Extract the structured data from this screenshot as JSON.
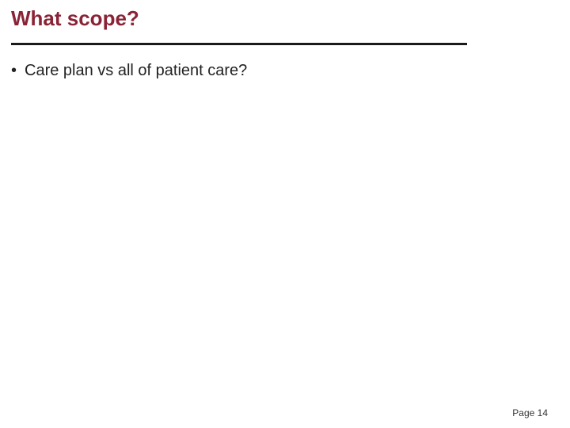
{
  "title": {
    "text": "What scope?",
    "color": "#8a2336",
    "fontsize": 26,
    "fontweight": 700
  },
  "divider": {
    "thickness": 3,
    "color": "#1a1a1a"
  },
  "bullets": [
    {
      "text": "Care plan vs all of patient care?"
    }
  ],
  "bullet_style": {
    "fontsize": 20,
    "color": "#222222",
    "dot_color": "#222222"
  },
  "footer": {
    "page_label": "Page 14",
    "fontsize": 12,
    "color": "#333333"
  },
  "background_color": "#ffffff"
}
